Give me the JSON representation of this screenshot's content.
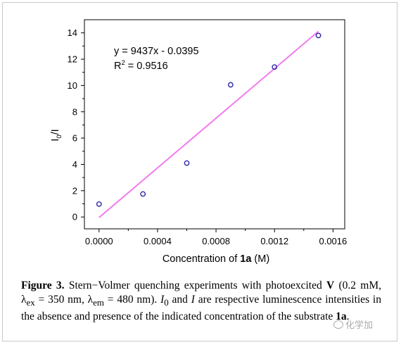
{
  "chart_data": {
    "type": "scatter",
    "xlabel_prefix": "Concentration of ",
    "xlabel_bold": "1a",
    "xlabel_suffix": " (M)",
    "ylabel": "I0/I",
    "x_ticks": [
      "0.0000",
      "0.0004",
      "0.0008",
      "0.0012",
      "0.0016"
    ],
    "y_ticks": [
      "0",
      "2",
      "4",
      "6",
      "8",
      "10",
      "12",
      "14"
    ],
    "xlim": [
      -0.0001,
      0.00168
    ],
    "ylim": [
      -0.9,
      15.0
    ],
    "series": [
      {
        "points": [
          {
            "x": 0.0,
            "y": 0.98
          },
          {
            "x": 0.0003,
            "y": 1.75
          },
          {
            "x": 0.0006,
            "y": 4.1
          },
          {
            "x": 0.0009,
            "y": 10.05
          },
          {
            "x": 0.0012,
            "y": 11.4
          },
          {
            "x": 0.0015,
            "y": 13.8
          }
        ],
        "color": "#2a2aa0"
      }
    ],
    "fit": {
      "slope": 9437,
      "intercept": -0.0395,
      "x_range": [
        0.0,
        0.0015
      ],
      "color": "#f07cf0",
      "equation": "y = 9437x - 0.0395",
      "r2_label": "R",
      "r2_sup": "2",
      "r2_value": " = 0.9516"
    },
    "grid": false
  },
  "caption": {
    "label": "Figure 3.",
    "text_1": " Stern−Volmer quenching experiments with photoexcited ",
    "bold_v": "V",
    "text_2": " (0.2 mM, λ",
    "sub_ex": "ex",
    "text_3": " = 350 nm, λ",
    "sub_em": "em",
    "text_4": " = 480 nm). ",
    "i0": "I",
    "i0_sub": "0",
    "text_5": " and ",
    "i": "I",
    "text_6": " are respective luminescence intensities in the absence and presence of the indicated concentration of the substrate ",
    "bold_1a": "1a",
    "text_7": "."
  },
  "watermark": "化学加"
}
